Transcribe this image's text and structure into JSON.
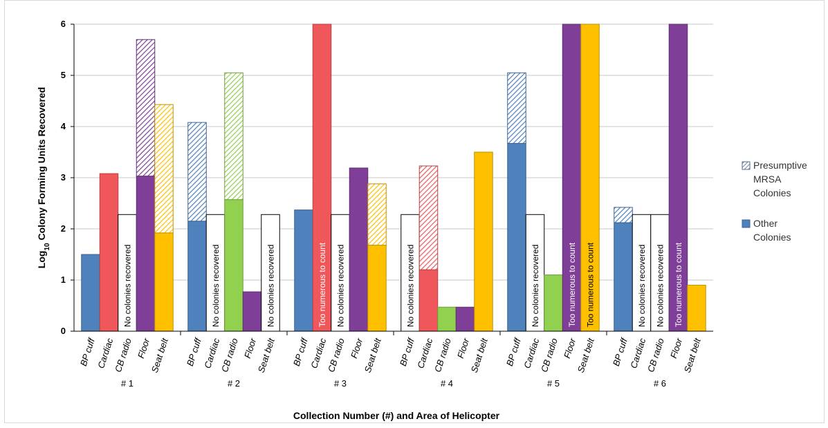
{
  "chart_data": {
    "type": "bar",
    "stacked": true,
    "xlabel": "Collection Number (#) and Area of Helicopter",
    "ylabel": "Log10 Colony Forming Units Recovered",
    "ylabel_parts": {
      "pre": "Log",
      "sub": "10",
      "post": " Colony Forming Units Recovered"
    },
    "ylim": [
      0,
      6
    ],
    "yticks": [
      "0",
      "1",
      "2",
      "3",
      "4",
      "5",
      "6"
    ],
    "grid": true,
    "legend_position": "right",
    "legend": {
      "presumptive_line1": "Presumptive",
      "presumptive_line2": "MRSA",
      "presumptive_line3": "Colonies",
      "other_line1": "Other",
      "other_line2": "Colonies"
    },
    "categories": [
      "BP cuff",
      "Cardiac",
      "CB radio",
      "Floor",
      "Seat belt"
    ],
    "category_colors": {
      "BP cuff": "#4f81bd",
      "Cardiac": "#f0575a",
      "CB radio": "#92d050",
      "Floor": "#7f3f98",
      "Seat belt": "#ffc000"
    },
    "groups": [
      {
        "label": "# 1",
        "bars": [
          {
            "category": "BP cuff",
            "other": 1.5,
            "total": 1.5,
            "note": ""
          },
          {
            "category": "Cardiac",
            "other": 3.08,
            "total": 3.08,
            "note": ""
          },
          {
            "category": "CB radio",
            "other": 2.28,
            "total": 2.28,
            "note": "No colonies recovered",
            "empty": true
          },
          {
            "category": "Floor",
            "other": 3.03,
            "total": 5.7,
            "note": ""
          },
          {
            "category": "Seat belt",
            "other": 1.92,
            "total": 4.43,
            "note": ""
          }
        ]
      },
      {
        "label": "# 2",
        "bars": [
          {
            "category": "BP cuff",
            "other": 2.15,
            "total": 4.08,
            "note": ""
          },
          {
            "category": "Cardiac",
            "other": 2.28,
            "total": 2.28,
            "note": "No colonies recovered",
            "empty": true
          },
          {
            "category": "CB radio",
            "other": 2.57,
            "total": 5.05,
            "note": ""
          },
          {
            "category": "Floor",
            "other": 0.77,
            "total": 0.77,
            "note": ""
          },
          {
            "category": "Seat belt",
            "other": 2.28,
            "total": 2.28,
            "note": "No colonies recovered",
            "empty": true
          }
        ]
      },
      {
        "label": "# 3",
        "bars": [
          {
            "category": "BP cuff",
            "other": 2.37,
            "total": 2.37,
            "note": ""
          },
          {
            "category": "Cardiac",
            "other": 6,
            "total": 6,
            "note": "Too numerous to count",
            "tntc": true
          },
          {
            "category": "CB radio",
            "other": 2.28,
            "total": 2.28,
            "note": "No colonies recovered",
            "empty": true
          },
          {
            "category": "Floor",
            "other": 3.19,
            "total": 3.19,
            "note": ""
          },
          {
            "category": "Seat belt",
            "other": 1.68,
            "total": 2.88,
            "note": ""
          }
        ]
      },
      {
        "label": "# 4",
        "bars": [
          {
            "category": "BP cuff",
            "other": 2.28,
            "total": 2.28,
            "note": "No colonies recovered",
            "empty": true
          },
          {
            "category": "Cardiac",
            "other": 1.2,
            "total": 3.23,
            "note": ""
          },
          {
            "category": "CB radio",
            "other": 0.47,
            "total": 0.47,
            "note": ""
          },
          {
            "category": "Floor",
            "other": 0.47,
            "total": 0.47,
            "note": ""
          },
          {
            "category": "Seat belt",
            "other": 3.5,
            "total": 3.5,
            "note": ""
          }
        ]
      },
      {
        "label": "# 5",
        "bars": [
          {
            "category": "BP cuff",
            "other": 3.67,
            "total": 5.05,
            "note": ""
          },
          {
            "category": "Cardiac",
            "other": 2.28,
            "total": 2.28,
            "note": "No colonies recovered",
            "empty": true
          },
          {
            "category": "CB radio",
            "other": 1.1,
            "total": 1.1,
            "note": ""
          },
          {
            "category": "Floor",
            "other": 6,
            "total": 6,
            "note": "Too numerous to count",
            "tntc": true
          },
          {
            "category": "Seat belt",
            "other": 6,
            "total": 6,
            "note": "Too numerous to count",
            "tntc": true
          }
        ]
      },
      {
        "label": "# 6",
        "bars": [
          {
            "category": "BP cuff",
            "other": 2.12,
            "total": 2.42,
            "note": ""
          },
          {
            "category": "Cardiac",
            "other": 2.28,
            "total": 2.28,
            "note": "No colonies recovered",
            "empty": true
          },
          {
            "category": "CB radio",
            "other": 2.28,
            "total": 2.28,
            "note": "No colonies recovered",
            "empty": true
          },
          {
            "category": "Floor",
            "other": 6,
            "total": 6,
            "note": "Too numerous to count",
            "tntc": true
          },
          {
            "category": "Seat belt",
            "other": 0.9,
            "total": 0.9,
            "note": ""
          }
        ]
      }
    ]
  }
}
